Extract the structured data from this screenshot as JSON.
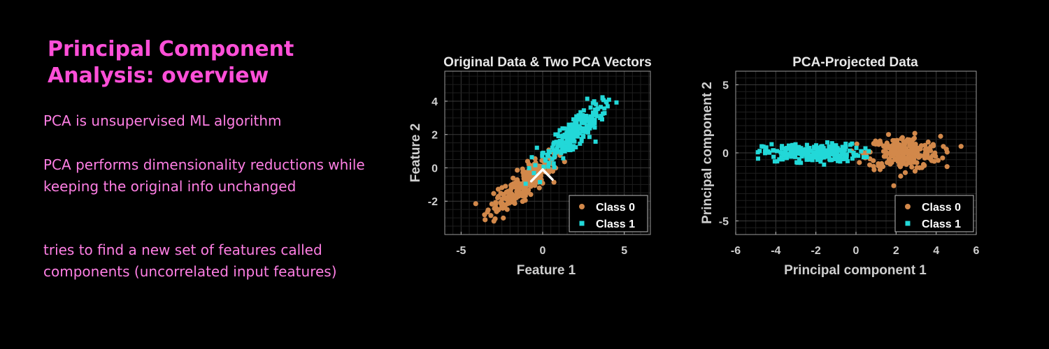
{
  "slide": {
    "title": "Principal Component Analysis: overview",
    "paragraphs": [
      "PCA is unsupervised ML algorithm",
      "PCA performs dimensionality reductions while keeping the original info unchanged",
      "tries to find a new set of features called components (uncorrelated input features)"
    ],
    "colors": {
      "title": "#ff4fd8",
      "text": "#ff7fe4",
      "background": "#000000"
    }
  },
  "chart_data": [
    {
      "type": "scatter",
      "title": "Original Data & Two PCA Vectors",
      "xlabel": "Feature 1",
      "ylabel": "Feature 2",
      "xlim": [
        -6,
        6.6
      ],
      "ylim": [
        -4,
        5.8
      ],
      "xticks": [
        -5,
        0,
        5
      ],
      "yticks": [
        -2,
        0,
        2,
        4
      ],
      "grid": true,
      "legend_position": "bottom-right",
      "series": [
        {
          "name": "Class 0",
          "marker": "circle",
          "color": "#d2884a",
          "center": [
            -1.2,
            -1.0
          ],
          "spread": [
            1.0,
            1.0
          ],
          "count": 240
        },
        {
          "name": "Class 1",
          "marker": "square",
          "color": "#22d8d8",
          "center": [
            2.0,
            2.1
          ],
          "spread": [
            1.0,
            1.0
          ],
          "count": 240
        }
      ],
      "vectors": {
        "color": "#ffffff",
        "origin": [
          0.0,
          -0.1
        ],
        "ends": [
          [
            -0.7,
            -0.8
          ],
          [
            0.6,
            -0.7
          ]
        ]
      }
    },
    {
      "type": "scatter",
      "title": "PCA-Projected Data",
      "xlabel": "Principal component 1",
      "ylabel": "Principal component 2",
      "xlim": [
        -6,
        6
      ],
      "ylim": [
        -6,
        6
      ],
      "xticks": [
        -6,
        -4,
        -2,
        0,
        2,
        4,
        6
      ],
      "yticks": [
        -5,
        0,
        5
      ],
      "grid": true,
      "legend_position": "bottom-right",
      "series": [
        {
          "name": "Class 0",
          "marker": "circle",
          "color": "#d2884a",
          "center": [
            2.4,
            0.0
          ],
          "spread": [
            0.9,
            1.0
          ],
          "count": 240
        },
        {
          "name": "Class 1",
          "marker": "square",
          "color": "#22d8d8",
          "center": [
            -2.2,
            0.0
          ],
          "spread": [
            1.2,
            0.55
          ],
          "count": 240
        }
      ]
    }
  ]
}
